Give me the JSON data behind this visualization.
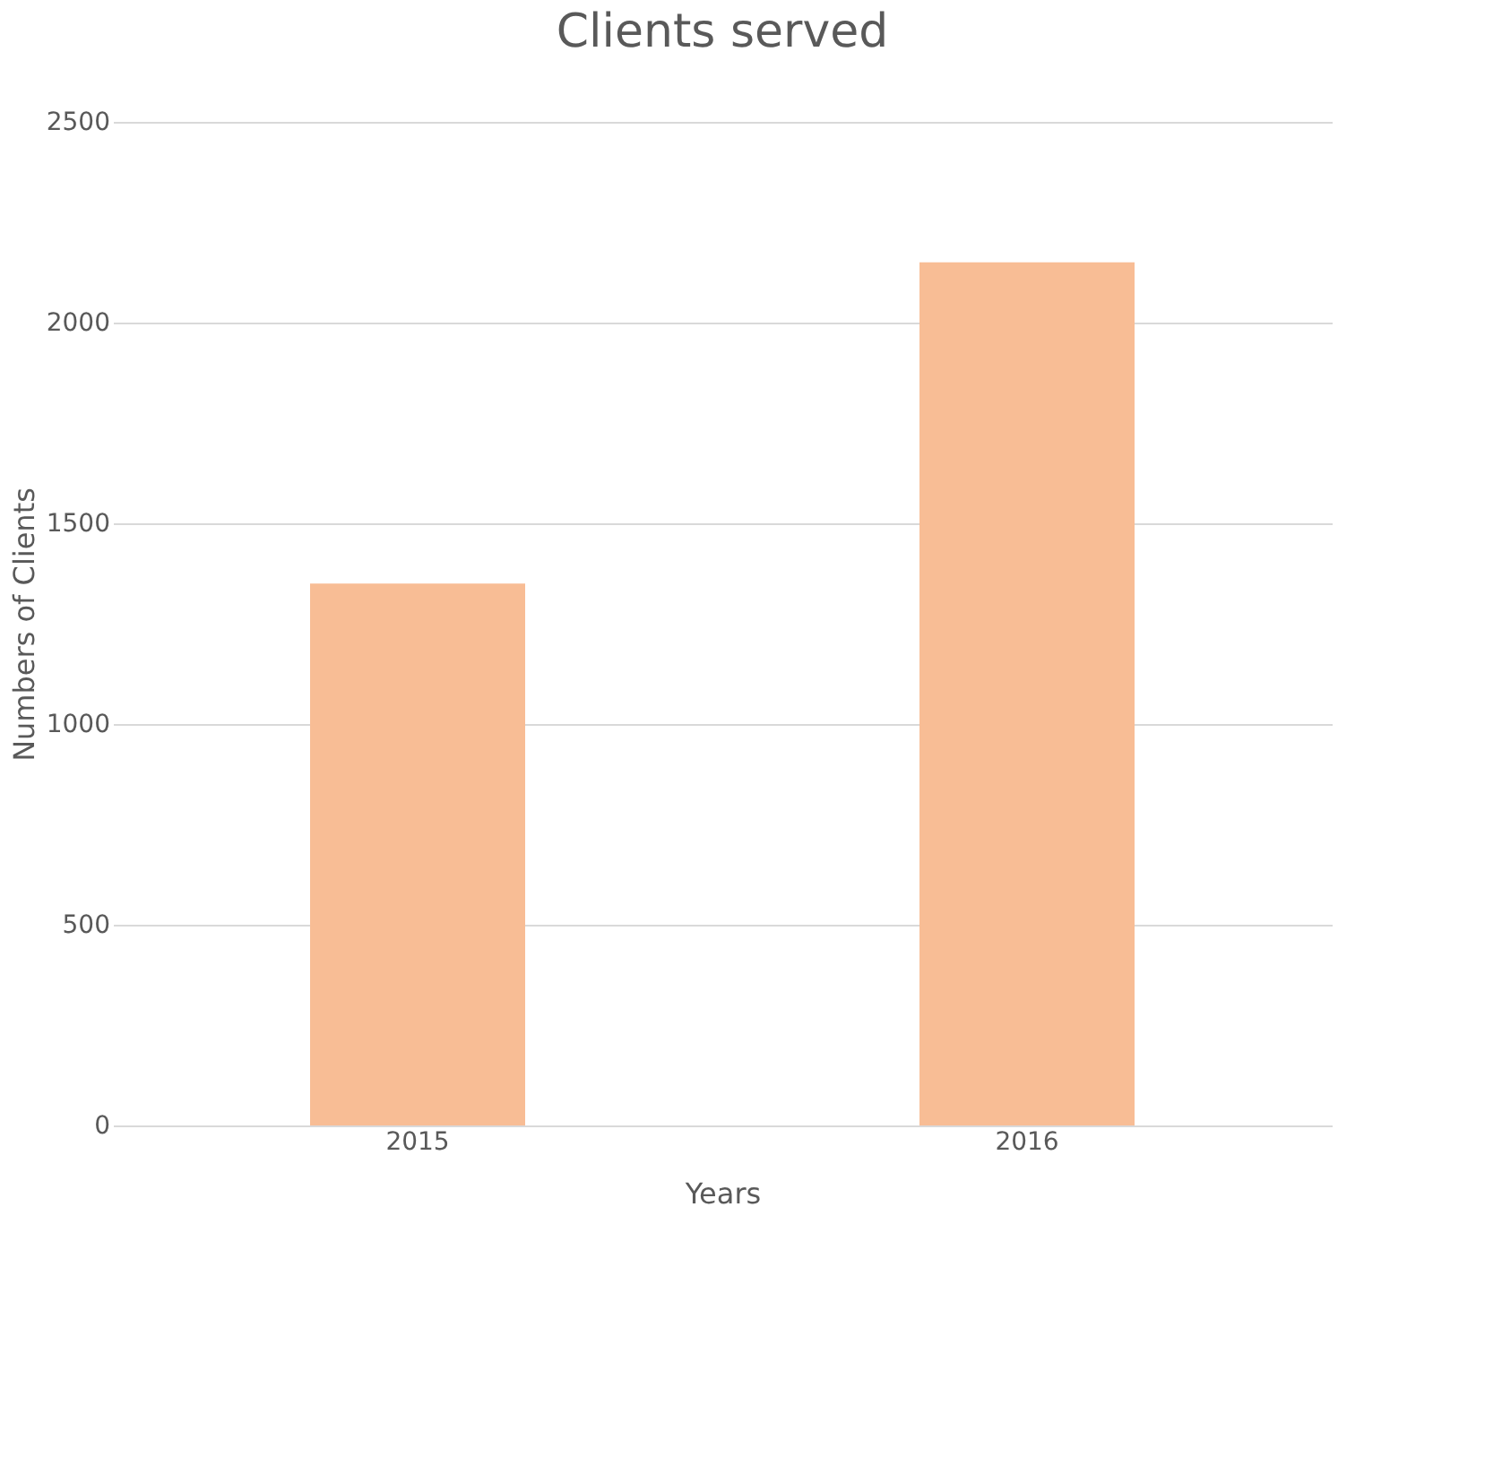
{
  "chart_data": {
    "type": "bar",
    "title": "Clients served",
    "xlabel": "Years",
    "ylabel": "Numbers of Clients",
    "categories": [
      "2015",
      "2016"
    ],
    "values": [
      1350,
      2150
    ],
    "color": "#f8bd95",
    "ylim": [
      0,
      2500
    ],
    "yticks": [
      0,
      500,
      1000,
      1500,
      2000,
      2500
    ],
    "grid": "y"
  }
}
